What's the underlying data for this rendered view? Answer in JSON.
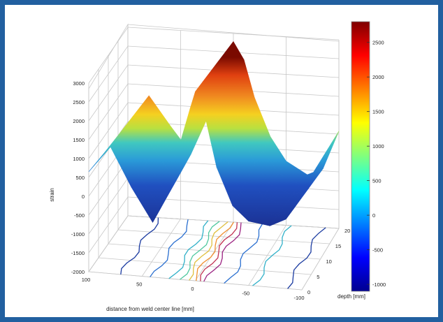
{
  "chart_data": {
    "type": "surface3d",
    "title": "",
    "xlabel": "distance from weld center line [mm]",
    "ylabel": "depth [mm]",
    "zlabel": "strain",
    "x_ticks": [
      100,
      50,
      0,
      -50,
      -100
    ],
    "y_ticks": [
      0,
      5,
      10,
      15,
      20
    ],
    "z_ticks": [
      -2000,
      -1500,
      -1000,
      -500,
      0,
      500,
      1000,
      1500,
      2000,
      2500,
      3000
    ],
    "xlim": [
      100,
      -100
    ],
    "ylim": [
      0,
      20
    ],
    "zlim": [
      -2000,
      3000
    ],
    "grid": true,
    "colormap": "jet",
    "colorbar": {
      "range": [
        -1100,
        2800
      ],
      "ticks": [
        2500,
        2000,
        1500,
        1000,
        500,
        0,
        -500,
        -1000
      ],
      "placement": "right"
    },
    "contours_on_floor": true,
    "surface_profile": {
      "x": [
        100,
        80,
        60,
        40,
        25,
        12,
        5,
        0,
        -10,
        -20,
        -35,
        -50,
        -70,
        -85,
        -100
      ],
      "z": [
        500,
        1300,
        400,
        -400,
        600,
        1800,
        2400,
        2900,
        2300,
        1200,
        200,
        -300,
        -500,
        -300,
        600
      ]
    }
  }
}
